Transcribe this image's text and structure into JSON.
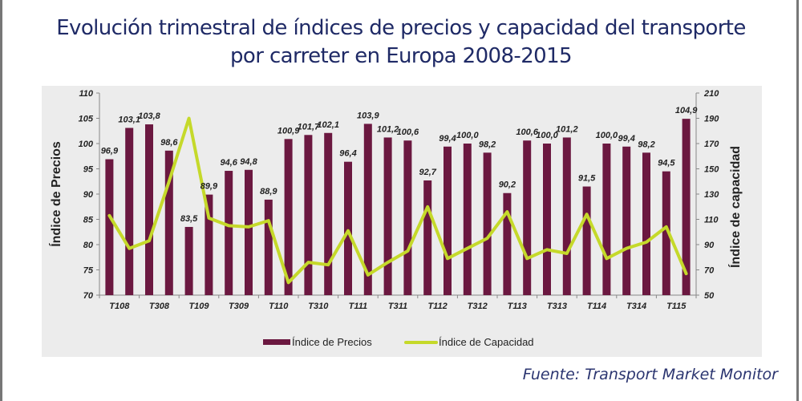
{
  "title": {
    "line1": "Evolución trimestral de índices de precios y capacidad del transporte",
    "line2": "por carreter en Europa 2008-2015"
  },
  "source": "Fuente: Transport Market Monitor",
  "colors": {
    "bars": "#6b1840",
    "line": "#c5d92a",
    "title": "#1f2a66"
  },
  "chart_data": {
    "type": "bar+line",
    "title": "Evolución trimestral de índices de precios y capacidad del transporte por carreter en Europa 2008-2015",
    "ylabel_left": "Índice de Precios",
    "ylabel_right": "Índice de capacidad",
    "ylim_left": [
      70,
      110
    ],
    "ylim_right": [
      50,
      210
    ],
    "yticks_left": [
      "70",
      "75",
      "80",
      "85",
      "90",
      "95",
      "100",
      "105",
      "110"
    ],
    "yticks_right": [
      "50",
      "70",
      "90",
      "110",
      "130",
      "150",
      "170",
      "190",
      "210"
    ],
    "xtick_labels": [
      "T108",
      "T308",
      "T109",
      "T309",
      "T110",
      "T310",
      "T111",
      "T311",
      "T112",
      "T312",
      "T113",
      "T313",
      "T114",
      "T314",
      "T115"
    ],
    "legend": [
      "Índice de Precios",
      "Índice de Capacidad"
    ],
    "legend_position": "bottom",
    "series": [
      {
        "name": "Índice de Precios",
        "axis": "left",
        "type": "bar",
        "values": [
          96.9,
          103.1,
          103.8,
          98.6,
          83.5,
          89.9,
          94.6,
          94.8,
          88.9,
          100.9,
          101.7,
          102.1,
          96.4,
          103.9,
          101.2,
          100.6,
          92.7,
          99.4,
          100.0,
          98.2,
          90.2,
          100.6,
          100.0,
          101.2,
          91.5,
          100.0,
          99.4,
          98.2,
          94.5,
          104.9
        ],
        "labels": [
          "96,9",
          "103,1",
          "103,8",
          "98,6",
          "83,5",
          "89,9",
          "94,6",
          "94,8",
          "88,9",
          "100,9",
          "101,7",
          "102,1",
          "96,4",
          "103,9",
          "101,2",
          "100,6",
          "92,7",
          "99,4",
          "100,0",
          "98,2",
          "90,2",
          "100,6",
          "100,0",
          "101,2",
          "91,5",
          "100,0",
          "99,4",
          "98,2",
          "94,5",
          "104,9"
        ]
      },
      {
        "name": "Índice de Capacidad",
        "axis": "right",
        "type": "line",
        "values": [
          113,
          87,
          93,
          140,
          190,
          111,
          105,
          104,
          109,
          60,
          76,
          74,
          101,
          66,
          76,
          85,
          120,
          79,
          87,
          95,
          116,
          79,
          86,
          83,
          114,
          79,
          87,
          92,
          104,
          67
        ]
      }
    ]
  }
}
